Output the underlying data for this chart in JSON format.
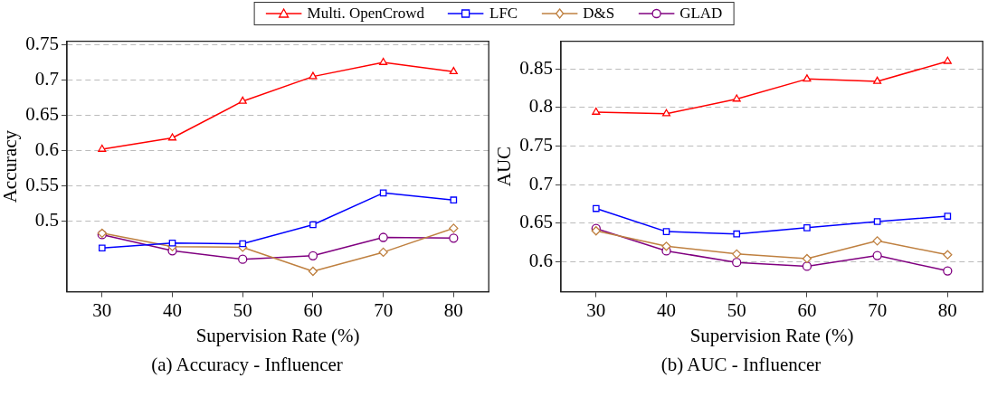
{
  "chart_data": [
    {
      "type": "line",
      "title": "(a) Accuracy - Influencer",
      "xlabel": "Supervision Rate (%)",
      "ylabel": "Accuracy",
      "x": [
        30,
        40,
        50,
        60,
        70,
        80
      ],
      "xlim": [
        25,
        85
      ],
      "xticks": [
        30,
        40,
        50,
        60,
        70,
        80
      ],
      "ylim": [
        0.4,
        0.755
      ],
      "yticks": [
        0.5,
        0.55,
        0.6,
        0.65,
        0.7,
        0.75
      ],
      "grid": "y",
      "legend": "top",
      "series": [
        {
          "name": "Multi. OpenCrowd",
          "color": "#ff0000",
          "marker": "triangle",
          "values": [
            0.602,
            0.618,
            0.67,
            0.705,
            0.725,
            0.712
          ]
        },
        {
          "name": "LFC",
          "color": "#0000ff",
          "marker": "square",
          "values": [
            0.462,
            0.469,
            0.468,
            0.495,
            0.54,
            0.53
          ]
        },
        {
          "name": "D&S",
          "color": "#bf8040",
          "marker": "diamond",
          "values": [
            0.483,
            0.464,
            0.463,
            0.429,
            0.456,
            0.49
          ]
        },
        {
          "name": "GLAD",
          "color": "#800080",
          "marker": "circle",
          "values": [
            0.481,
            0.458,
            0.446,
            0.451,
            0.477,
            0.476
          ]
        }
      ]
    },
    {
      "type": "line",
      "title": "(b) AUC - Influencer",
      "xlabel": "Supervision Rate (%)",
      "ylabel": "AUC",
      "x": [
        30,
        40,
        50,
        60,
        70,
        80
      ],
      "xlim": [
        25,
        85
      ],
      "xticks": [
        30,
        40,
        50,
        60,
        70,
        80
      ],
      "ylim": [
        0.561,
        0.886
      ],
      "yticks": [
        0.6,
        0.65,
        0.7,
        0.75,
        0.8,
        0.85
      ],
      "grid": "y",
      "legend": "top",
      "series": [
        {
          "name": "Multi. OpenCrowd",
          "color": "#ff0000",
          "marker": "triangle",
          "values": [
            0.794,
            0.792,
            0.811,
            0.837,
            0.834,
            0.86
          ]
        },
        {
          "name": "LFC",
          "color": "#0000ff",
          "marker": "square",
          "values": [
            0.669,
            0.639,
            0.636,
            0.644,
            0.652,
            0.659
          ]
        },
        {
          "name": "D&S",
          "color": "#bf8040",
          "marker": "diamond",
          "values": [
            0.64,
            0.62,
            0.61,
            0.604,
            0.627,
            0.609
          ]
        },
        {
          "name": "GLAD",
          "color": "#800080",
          "marker": "circle",
          "values": [
            0.643,
            0.614,
            0.599,
            0.594,
            0.608,
            0.588
          ]
        }
      ]
    }
  ]
}
